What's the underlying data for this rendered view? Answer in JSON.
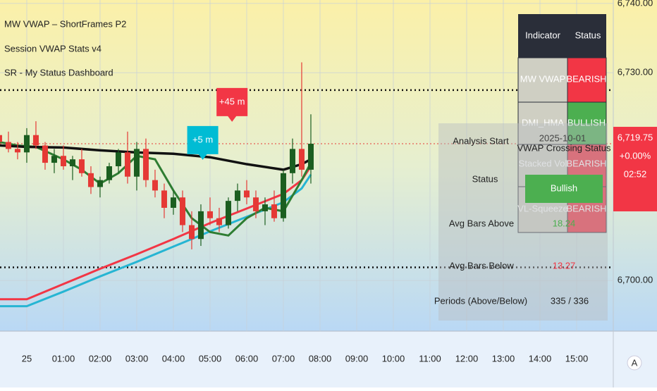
{
  "chart_data": {
    "type": "candlestick",
    "legend": [
      "MW VWAP – ShortFrames P2",
      "Session VWAP Stats v4",
      "SR - My Status Dashboard"
    ],
    "xlim": [
      -0.73,
      16.0
    ],
    "xticks": [
      {
        "value": 0,
        "label": "25"
      },
      {
        "value": 1,
        "label": "01:00"
      },
      {
        "value": 2,
        "label": "02:00"
      },
      {
        "value": 3,
        "label": "03:00"
      },
      {
        "value": 4,
        "label": "04:00"
      },
      {
        "value": 5,
        "label": "05:00"
      },
      {
        "value": 6,
        "label": "06:00"
      },
      {
        "value": 7,
        "label": "07:00"
      },
      {
        "value": 8,
        "label": "08:00"
      },
      {
        "value": 9,
        "label": "09:00"
      },
      {
        "value": 10,
        "label": "10:00"
      },
      {
        "value": 11,
        "label": "11:00"
      },
      {
        "value": 12,
        "label": "12:00"
      },
      {
        "value": 13,
        "label": "13:00"
      },
      {
        "value": 14,
        "label": "14:00"
      },
      {
        "value": 15,
        "label": "15:00"
      }
    ],
    "ylim": [
      6692.7,
      6740.5
    ],
    "yticks": [
      {
        "value": 6700,
        "label": "6,700.00"
      },
      {
        "value": 6730,
        "label": "6,730.00"
      },
      {
        "value": 6740,
        "label": "6,740.00"
      }
    ],
    "grid": true,
    "candles": {
      "x": [
        -0.75,
        -0.5,
        -0.25,
        0,
        0.25,
        0.5,
        0.75,
        1,
        1.25,
        1.5,
        1.75,
        2,
        2.25,
        2.5,
        2.75,
        3,
        3.25,
        3.5,
        3.75,
        4,
        4.25,
        4.5,
        4.75,
        5,
        5.25,
        5.5,
        5.75,
        6,
        6.25,
        6.5,
        6.75,
        7,
        7.25,
        7.5,
        7.75
      ],
      "open": [
        6721,
        6720,
        6719,
        6718.5,
        6721,
        6719.5,
        6717,
        6718,
        6716.5,
        6717.5,
        6715.5,
        6713.5,
        6714.5,
        6716.5,
        6718.5,
        6715,
        6719,
        6714.5,
        6713,
        6710.5,
        6712,
        6708,
        6706,
        6710,
        6709,
        6708,
        6711.5,
        6713,
        6712,
        6710,
        6711,
        6709,
        6715.5,
        6719,
        6716
      ],
      "high": [
        6722,
        6721.5,
        6720,
        6722,
        6723,
        6720,
        6719,
        6719.5,
        6718,
        6719,
        6716.5,
        6715,
        6717,
        6719,
        6721.5,
        6720,
        6720.5,
        6716,
        6714,
        6713,
        6713,
        6710,
        6711,
        6712,
        6710.5,
        6712,
        6714,
        6714.5,
        6713,
        6712,
        6713,
        6716,
        6720.5,
        6731.5,
        6724
      ],
      "low": [
        6719,
        6718.5,
        6717.5,
        6717,
        6719,
        6716,
        6715.5,
        6716,
        6714.5,
        6715,
        6712.5,
        6712,
        6714,
        6715.5,
        6714,
        6713,
        6713.5,
        6712,
        6709,
        6709.5,
        6707,
        6704.5,
        6705,
        6708,
        6707,
        6707.5,
        6710,
        6711,
        6709,
        6708,
        6708.5,
        6708.5,
        6714,
        6715,
        6714
      ],
      "close": [
        6720,
        6719,
        6718.5,
        6721,
        6719.5,
        6717,
        6718,
        6716.5,
        6717.5,
        6715.5,
        6713.5,
        6714.5,
        6716.5,
        6718.5,
        6715,
        6719,
        6714.5,
        6713,
        6710.5,
        6712,
        6708,
        6706,
        6710,
        6709,
        6708,
        6711.5,
        6713,
        6712,
        6710,
        6711,
        6709,
        6715.5,
        6719,
        6716,
        6719.75
      ]
    },
    "series": [
      {
        "color": "#f23645",
        "x": [
          -0.75,
          0,
          1,
          2,
          3,
          4,
          5,
          6,
          7,
          7.5,
          7.75
        ],
        "values": [
          6697.3,
          6697.3,
          6699.5,
          6701.7,
          6703.8,
          6706,
          6708.3,
          6710.4,
          6712.5,
          6714.5,
          6716.5
        ]
      },
      {
        "color": "#26b5d3",
        "x": [
          -0.75,
          0,
          1,
          2,
          3,
          4,
          5,
          6,
          7,
          7.5,
          7.75
        ],
        "values": [
          6696.3,
          6696.3,
          6698.4,
          6700.6,
          6702.7,
          6704.9,
          6707.1,
          6709.2,
          6711.3,
          6713.3,
          6715.3
        ]
      },
      {
        "color": "#2e7d32",
        "x": [
          -0.75,
          -0.25,
          0.25,
          1,
          1.5,
          2,
          2.5,
          3,
          3.5,
          4,
          4.5,
          5,
          5.5,
          6,
          6.5,
          7,
          7.5,
          7.75
        ],
        "values": [
          6720,
          6719.5,
          6719.3,
          6717.5,
          6716,
          6714,
          6715.5,
          6718,
          6717.5,
          6713,
          6709,
          6707,
          6706.5,
          6709,
          6710.5,
          6710,
          6714.5,
          6717
        ]
      },
      {
        "color": "#111111",
        "x": [
          -0.75,
          0,
          1,
          2,
          3,
          4,
          5,
          6,
          7,
          7.5,
          7.75
        ],
        "values": [
          6719.5,
          6719.3,
          6719.2,
          6718.8,
          6718.5,
          6718.3,
          6717.8,
          6716.8,
          6716,
          6716.8,
          6717.5
        ]
      }
    ],
    "levels": [
      6727.5,
      6701.9
    ],
    "callouts": [
      {
        "label": "+45 m",
        "x": 5.6,
        "y": 6721.5
      },
      {
        "label": "+5 m",
        "x": 4.8,
        "y": 6716
      }
    ],
    "last_price": {
      "value": 6719.75,
      "label": "6,719.75"
    },
    "change_label": "+0.00%",
    "countdown": "02:52"
  },
  "status_table": {
    "headers": [
      "Indicator",
      "Status"
    ],
    "rows": [
      [
        "MW VWAP",
        "BEARISH"
      ],
      [
        "DMI_HMA",
        "BULLISH"
      ],
      [
        "Stacked Vol",
        "BEARISH"
      ],
      [
        "VL-Squeeze",
        "BEARISH"
      ]
    ]
  },
  "stats_panel": {
    "title": "VWAP Crossing Status",
    "analysis_start": [
      "Analysis Start",
      "2025-10-01"
    ],
    "status": [
      "Status",
      "Bullish"
    ],
    "avg_above": [
      "Avg Bars Above",
      18.24
    ],
    "avg_below": [
      "Avg Bars Below",
      13.27
    ],
    "periods": [
      "Periods (Above/Below)",
      "335 / 336"
    ]
  },
  "scale_button": "A"
}
